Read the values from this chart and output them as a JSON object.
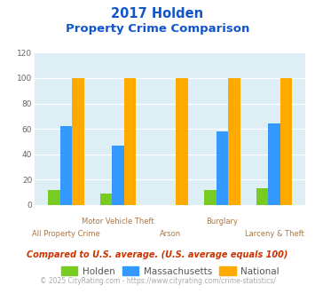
{
  "title_line1": "2017 Holden",
  "title_line2": "Property Crime Comparison",
  "top_labels": [
    "",
    "Motor Vehicle Theft",
    "",
    "Burglary",
    ""
  ],
  "bottom_labels": [
    "All Property Crime",
    "",
    "Arson",
    "",
    "Larceny & Theft"
  ],
  "series": {
    "Holden": [
      12,
      9,
      0,
      12,
      13
    ],
    "Massachusetts": [
      62,
      47,
      0,
      58,
      64
    ],
    "National": [
      100,
      100,
      100,
      100,
      100
    ]
  },
  "colors": {
    "Holden": "#77cc22",
    "Massachusetts": "#3399ff",
    "National": "#ffaa00"
  },
  "ylim": [
    0,
    120
  ],
  "yticks": [
    0,
    20,
    40,
    60,
    80,
    100,
    120
  ],
  "background_color": "#ddeef5",
  "title_color": "#1155cc",
  "axis_label_color": "#aa7744",
  "legend_text_color": "#555555",
  "footnote1": "Compared to U.S. average. (U.S. average equals 100)",
  "footnote2": "© 2025 CityRating.com - https://www.cityrating.com/crime-statistics/",
  "footnote1_color": "#cc3300",
  "footnote2_color": "#aaaaaa",
  "footnote2_link_color": "#3399ff"
}
